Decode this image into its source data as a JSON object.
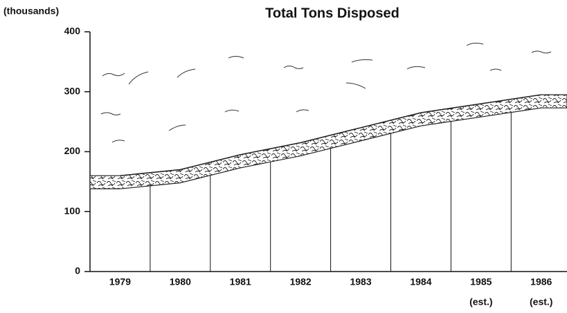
{
  "chart_data": {
    "type": "area",
    "title": "Total Tons Disposed",
    "y_label": "(thousands)",
    "categories": [
      "1979",
      "1980",
      "1981",
      "1982",
      "1983",
      "1984",
      "1985",
      "1986"
    ],
    "category_notes": [
      null,
      null,
      null,
      null,
      null,
      null,
      "(est.)",
      "(est.)"
    ],
    "values": [
      160,
      170,
      195,
      215,
      240,
      265,
      280,
      295
    ],
    "color": "#222222",
    "ylim": [
      0,
      400
    ],
    "yticks": [
      0,
      100,
      200,
      300,
      400
    ]
  }
}
